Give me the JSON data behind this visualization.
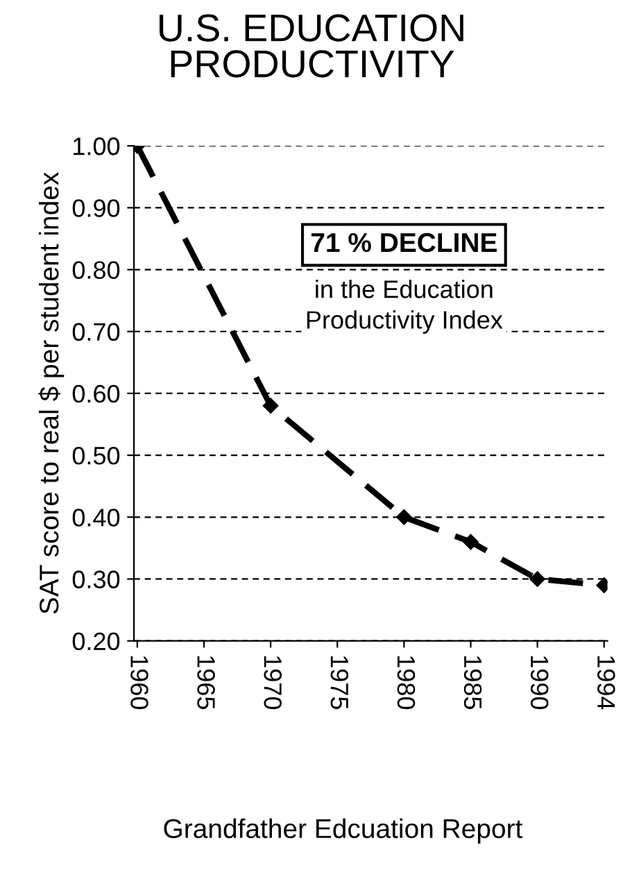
{
  "chart_data": {
    "type": "line",
    "title": "U.S. EDUCATION\nPRODUCTIVITY",
    "ylabel": "SAT score to real $ per student index",
    "categories": [
      "1960",
      "1965",
      "1970",
      "1975",
      "1980",
      "1985",
      "1990",
      "1994"
    ],
    "series": [
      {
        "color": "#000000",
        "values": [
          1.0,
          null,
          0.58,
          null,
          0.4,
          0.36,
          0.3,
          0.29
        ]
      }
    ],
    "ylim": [
      0.2,
      1.0
    ],
    "yticks": [
      {
        "value": 0.2,
        "label": "0.20"
      },
      {
        "value": 0.3,
        "label": "0.30"
      },
      {
        "value": 0.4,
        "label": "0.40"
      },
      {
        "value": 0.5,
        "label": "0.50"
      },
      {
        "value": 0.6,
        "label": "0.60"
      },
      {
        "value": 0.7,
        "label": "0.70"
      },
      {
        "value": 0.8,
        "label": "0.80"
      },
      {
        "value": 0.9,
        "label": "0.90"
      },
      {
        "value": 1.0,
        "label": "1.00"
      }
    ],
    "grid": "y",
    "marker": "diamond",
    "line_style": "dashed",
    "annotations": [
      "71 % DECLINE\nin the Education\nProductivity Index",
      "Grandfather Edcuation Report"
    ]
  }
}
